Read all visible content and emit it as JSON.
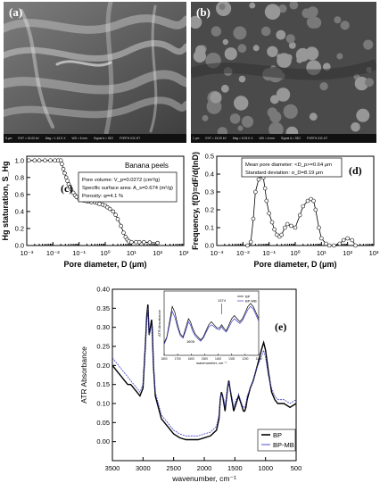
{
  "sem_a": {
    "label": "(a)",
    "bar": [
      "5 μm",
      "EHT = 15.00 kV",
      "Mag = 1.16 K X",
      "WD = 6 mm",
      "Signal A = SE2",
      "FORTH ICE-HT"
    ]
  },
  "sem_b": {
    "label": "(b)",
    "bar": [
      "1 μm",
      "EHT = 15.00 kV",
      "Mag = 8.33 K X",
      "WD = 6 mm",
      "Signal A = SE2",
      "FORTH ICE-HT"
    ]
  },
  "chart_data": [
    {
      "type": "line",
      "panel_label": "(c)",
      "title": "Banana peels",
      "xlabel": "Pore diameter, D (μm)",
      "ylabel": "Hg staturation, S_Hg",
      "xscale": "log",
      "xlim": [
        0.001,
        1000
      ],
      "ylim": [
        0,
        1.05
      ],
      "xticks": [
        "10⁻³",
        "10⁻²",
        "10⁻¹",
        "10⁰",
        "10¹",
        "10²",
        "10³"
      ],
      "yticks": [
        "0.0",
        "0.2",
        "0.4",
        "0.6",
        "0.8",
        "1.0"
      ],
      "annotation": [
        "Pore volume: V_p=0.0272 (cm³/g)",
        "Specific surface area: A_s=0.674 (m²/g)",
        "Porosity: φ=4.1 %"
      ],
      "x": [
        0.0012,
        0.002,
        0.003,
        0.005,
        0.008,
        0.012,
        0.016,
        0.02,
        0.022,
        0.025,
        0.028,
        0.032,
        0.036,
        0.04,
        0.045,
        0.05,
        0.06,
        0.07,
        0.08,
        0.1,
        0.12,
        0.15,
        0.2,
        0.25,
        0.3,
        0.4,
        0.5,
        0.6,
        0.8,
        1,
        1.2,
        1.5,
        2,
        2.5,
        3,
        4,
        5,
        6,
        7,
        8,
        10,
        15,
        20,
        30,
        50,
        100
      ],
      "y": [
        1.0,
        1.0,
        1.0,
        1.0,
        1.0,
        1.0,
        1.0,
        1.0,
        0.96,
        0.9,
        0.85,
        0.8,
        0.76,
        0.72,
        0.69,
        0.66,
        0.62,
        0.59,
        0.57,
        0.55,
        0.54,
        0.53,
        0.52,
        0.52,
        0.51,
        0.51,
        0.5,
        0.49,
        0.48,
        0.47,
        0.45,
        0.43,
        0.4,
        0.36,
        0.31,
        0.23,
        0.15,
        0.1,
        0.07,
        0.05,
        0.04,
        0.04,
        0.04,
        0.04,
        0.035,
        0.03
      ]
    },
    {
      "type": "line",
      "panel_label": "(d)",
      "xlabel": "Pore diameter, D (μm)",
      "ylabel": "Frequency, f(D)=dF/d(lnD)",
      "xscale": "log",
      "xlim": [
        0.001,
        1000
      ],
      "ylim": [
        0,
        0.5
      ],
      "xticks": [
        "10⁻³",
        "10⁻²",
        "10⁻¹",
        "10⁰",
        "10¹",
        "10²",
        "10³"
      ],
      "yticks": [
        "0.0",
        "0.1",
        "0.2",
        "0.3",
        "0.4",
        "0.5"
      ],
      "annotation": [
        "Mean pore diameter: <D_p>=0.64 μm",
        "Standard deviation: σ_D=8.19 μm"
      ],
      "x": [
        0.015,
        0.02,
        0.025,
        0.03,
        0.04,
        0.05,
        0.06,
        0.07,
        0.08,
        0.1,
        0.13,
        0.16,
        0.2,
        0.25,
        0.3,
        0.4,
        0.5,
        0.7,
        1,
        1.5,
        2,
        3,
        4,
        5,
        6,
        8,
        10,
        15,
        20,
        30,
        50,
        70,
        100,
        150,
        200
      ],
      "y": [
        0.0,
        0.02,
        0.15,
        0.3,
        0.37,
        0.39,
        0.38,
        0.32,
        0.25,
        0.18,
        0.13,
        0.09,
        0.06,
        0.05,
        0.06,
        0.1,
        0.12,
        0.11,
        0.1,
        0.17,
        0.22,
        0.25,
        0.26,
        0.25,
        0.2,
        0.1,
        0.04,
        0.01,
        0.0,
        0.0,
        0.01,
        0.03,
        0.04,
        0.03,
        0.0
      ]
    },
    {
      "type": "line",
      "panel_label": "(e)",
      "xlabel": "wavenumber, cm⁻¹",
      "ylabel": "ATR Absorbance",
      "xlim": [
        3500,
        500
      ],
      "ylim": [
        -0.05,
        0.4
      ],
      "xticks": [
        "3500",
        "3000",
        "2500",
        "2000",
        "1500",
        "1000",
        "500"
      ],
      "yticks": [
        "0.00",
        "0.05",
        "0.10",
        "0.15",
        "0.20",
        "0.25",
        "0.30",
        "0.35",
        "0.40"
      ],
      "legend": "bottom-right",
      "series": [
        {
          "name": "BP",
          "color": "#000000",
          "x": [
            3500,
            3450,
            3400,
            3350,
            3300,
            3250,
            3200,
            3150,
            3100,
            3050,
            3000,
            2960,
            2940,
            2920,
            2900,
            2880,
            2860,
            2850,
            2830,
            2800,
            2700,
            2600,
            2500,
            2400,
            2300,
            2200,
            2100,
            2000,
            1900,
            1800,
            1760,
            1740,
            1720,
            1700,
            1680,
            1660,
            1640,
            1620,
            1600,
            1580,
            1560,
            1540,
            1520,
            1500,
            1480,
            1460,
            1440,
            1420,
            1400,
            1380,
            1360,
            1340,
            1320,
            1300,
            1250,
            1200,
            1150,
            1100,
            1050,
            1030,
            1000,
            950,
            900,
            850,
            800,
            750,
            700,
            600,
            500
          ],
          "y": [
            0.2,
            0.19,
            0.18,
            0.17,
            0.16,
            0.15,
            0.15,
            0.14,
            0.13,
            0.12,
            0.14,
            0.26,
            0.33,
            0.36,
            0.28,
            0.3,
            0.32,
            0.3,
            0.2,
            0.12,
            0.06,
            0.04,
            0.02,
            0.01,
            0.005,
            0.005,
            0.005,
            0.01,
            0.015,
            0.03,
            0.06,
            0.11,
            0.13,
            0.12,
            0.1,
            0.08,
            0.11,
            0.14,
            0.16,
            0.14,
            0.12,
            0.1,
            0.08,
            0.09,
            0.1,
            0.11,
            0.12,
            0.11,
            0.1,
            0.09,
            0.08,
            0.08,
            0.09,
            0.11,
            0.14,
            0.16,
            0.19,
            0.22,
            0.25,
            0.26,
            0.24,
            0.18,
            0.13,
            0.11,
            0.1,
            0.1,
            0.1,
            0.09,
            0.1
          ]
        },
        {
          "name": "BP-MB",
          "color": "#3c3cc8",
          "x": [
            3500,
            3450,
            3400,
            3350,
            3300,
            3250,
            3200,
            3150,
            3100,
            3050,
            3000,
            2960,
            2940,
            2920,
            2900,
            2880,
            2860,
            2850,
            2830,
            2800,
            2700,
            2600,
            2500,
            2400,
            2300,
            2200,
            2100,
            2000,
            1900,
            1800,
            1760,
            1740,
            1720,
            1700,
            1680,
            1660,
            1640,
            1620,
            1600,
            1580,
            1560,
            1540,
            1520,
            1500,
            1480,
            1460,
            1440,
            1420,
            1400,
            1380,
            1360,
            1340,
            1320,
            1300,
            1250,
            1200,
            1150,
            1100,
            1050,
            1030,
            1000,
            950,
            900,
            850,
            800,
            750,
            700,
            600,
            500
          ],
          "y": [
            0.22,
            0.21,
            0.2,
            0.19,
            0.18,
            0.17,
            0.16,
            0.15,
            0.14,
            0.13,
            0.15,
            0.26,
            0.32,
            0.35,
            0.28,
            0.29,
            0.31,
            0.29,
            0.2,
            0.13,
            0.07,
            0.05,
            0.03,
            0.02,
            0.015,
            0.015,
            0.015,
            0.02,
            0.025,
            0.04,
            0.07,
            0.11,
            0.125,
            0.12,
            0.11,
            0.09,
            0.115,
            0.14,
            0.155,
            0.14,
            0.125,
            0.11,
            0.09,
            0.1,
            0.11,
            0.115,
            0.125,
            0.115,
            0.105,
            0.095,
            0.09,
            0.09,
            0.1,
            0.12,
            0.14,
            0.16,
            0.19,
            0.21,
            0.23,
            0.24,
            0.22,
            0.17,
            0.14,
            0.12,
            0.11,
            0.11,
            0.11,
            0.1,
            0.11
          ]
        }
      ],
      "inset": {
        "xlabel": "wavenumber, cm⁻¹",
        "ylabel": "ATR Absorbance",
        "xlim": [
          1800,
          1100
        ],
        "xticks": [
          "1800",
          "1700",
          "1600",
          "1500",
          "1400",
          "1300",
          "1200",
          "1100"
        ],
        "annotations": [
          "1374",
          "1605"
        ],
        "legend": [
          "BP",
          "BP-MB"
        ],
        "series": [
          {
            "name": "BP",
            "x": [
              1800,
              1780,
              1760,
              1740,
              1720,
              1700,
              1680,
              1660,
              1640,
              1620,
              1605,
              1590,
              1570,
              1550,
              1530,
              1510,
              1490,
              1470,
              1450,
              1430,
              1410,
              1390,
              1374,
              1360,
              1340,
              1320,
              1300,
              1280,
              1260,
              1240,
              1220,
              1200,
              1180,
              1160,
              1140,
              1120,
              1100
            ],
            "y": [
              0.2,
              0.3,
              0.55,
              0.8,
              0.7,
              0.5,
              0.35,
              0.3,
              0.45,
              0.6,
              0.55,
              0.45,
              0.35,
              0.3,
              0.25,
              0.3,
              0.4,
              0.5,
              0.55,
              0.5,
              0.45,
              0.45,
              0.5,
              0.45,
              0.4,
              0.5,
              0.6,
              0.65,
              0.6,
              0.55,
              0.6,
              0.7,
              0.8,
              0.85,
              0.8,
              0.7,
              0.6
            ]
          },
          {
            "name": "BP-MB",
            "x": [
              1800,
              1780,
              1760,
              1740,
              1720,
              1700,
              1680,
              1660,
              1640,
              1620,
              1605,
              1590,
              1570,
              1550,
              1530,
              1510,
              1490,
              1470,
              1450,
              1430,
              1410,
              1390,
              1374,
              1360,
              1340,
              1320,
              1300,
              1280,
              1260,
              1240,
              1220,
              1200,
              1180,
              1160,
              1140,
              1120,
              1100
            ],
            "y": [
              0.18,
              0.28,
              0.5,
              0.72,
              0.62,
              0.45,
              0.32,
              0.28,
              0.4,
              0.55,
              0.5,
              0.4,
              0.32,
              0.27,
              0.23,
              0.28,
              0.37,
              0.46,
              0.5,
              0.47,
              0.43,
              0.42,
              0.47,
              0.42,
              0.38,
              0.46,
              0.55,
              0.6,
              0.56,
              0.52,
              0.57,
              0.66,
              0.75,
              0.8,
              0.76,
              0.66,
              0.56
            ]
          }
        ]
      }
    }
  ]
}
